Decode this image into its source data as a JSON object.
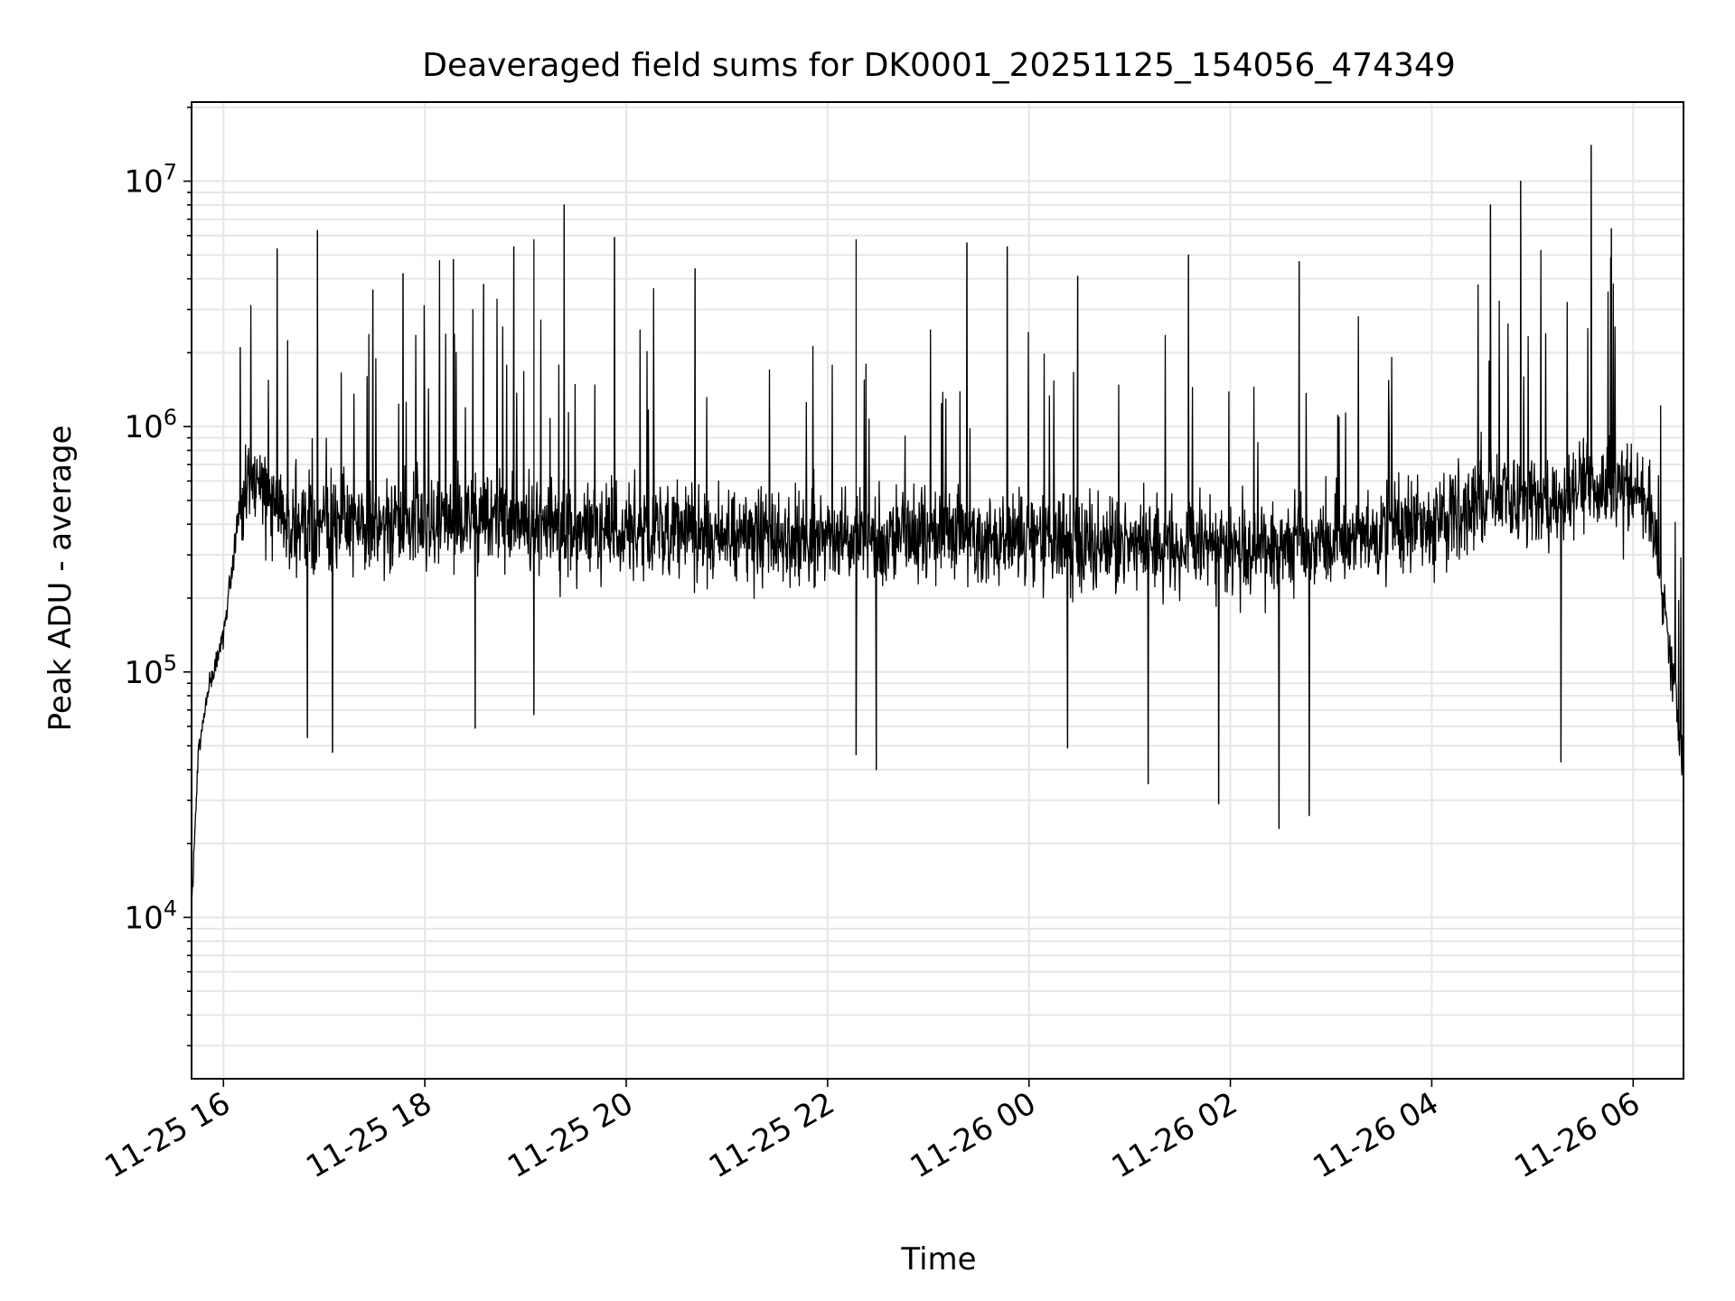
{
  "chart_data": {
    "type": "line",
    "title": "Deaveraged field sums for DK0001_20251125_154056_474349",
    "xlabel": "Time",
    "ylabel": "Peak ADU - average",
    "x_axis": {
      "type": "datetime",
      "range": [
        "2025-11-25 15:41",
        "2025-11-26 06:30"
      ],
      "tick_values": [
        "2025-11-25 16:00",
        "2025-11-25 18:00",
        "2025-11-25 20:00",
        "2025-11-25 22:00",
        "2025-11-26 00:00",
        "2025-11-26 02:00",
        "2025-11-26 04:00",
        "2025-11-26 06:00"
      ],
      "tick_labels": [
        "11-25 16",
        "11-25 18",
        "11-25 20",
        "11-25 22",
        "11-26 00",
        "11-26 02",
        "11-26 04",
        "11-26 06"
      ]
    },
    "y_axis": {
      "scale": "log",
      "range": [
        2200,
        21000000
      ],
      "tick_values": [
        10000,
        100000,
        1000000,
        10000000
      ],
      "tick_labels": [
        {
          "base": "10",
          "exp": "4"
        },
        {
          "base": "10",
          "exp": "5"
        },
        {
          "base": "10",
          "exp": "6"
        },
        {
          "base": "10",
          "exp": "7"
        }
      ]
    },
    "grid": true,
    "legend": "none",
    "series": [
      {
        "color": "#000000",
        "envelope": {
          "x": [
            "2025-11-25 15:41",
            "2025-11-25 15:45",
            "2025-11-25 15:50",
            "2025-11-25 16:00",
            "2025-11-25 16:05",
            "2025-11-25 16:10",
            "2025-11-25 16:20",
            "2025-11-25 16:30",
            "2025-11-25 16:45",
            "2025-11-25 17:00",
            "2025-11-25 18:00",
            "2025-11-25 19:00",
            "2025-11-25 20:00",
            "2025-11-25 21:00",
            "2025-11-25 22:00",
            "2025-11-25 23:00",
            "2025-11-26 00:00",
            "2025-11-26 01:00",
            "2025-11-26 02:00",
            "2025-11-26 03:00",
            "2025-11-26 04:00",
            "2025-11-26 04:30",
            "2025-11-26 05:00",
            "2025-11-26 05:30",
            "2025-11-26 06:00",
            "2025-11-26 06:10",
            "2025-11-26 06:20",
            "2025-11-26 06:30"
          ],
          "median": [
            11000,
            45000,
            80000,
            140000,
            250000,
            500000,
            600000,
            450000,
            380000,
            400000,
            410000,
            400000,
            380000,
            370000,
            350000,
            360000,
            340000,
            330000,
            320000,
            330000,
            420000,
            500000,
            520000,
            550000,
            600000,
            500000,
            150000,
            40000
          ]
        },
        "peaks": [
          {
            "x": "2025-11-25 16:10",
            "y": 2100000
          },
          {
            "x": "2025-11-25 16:32",
            "y": 5300000
          },
          {
            "x": "2025-11-25 16:56",
            "y": 6300000
          },
          {
            "x": "2025-11-25 17:29",
            "y": 3600000
          },
          {
            "x": "2025-11-25 17:47",
            "y": 4200000
          },
          {
            "x": "2025-11-25 18:17",
            "y": 4800000
          },
          {
            "x": "2025-11-25 18:35",
            "y": 3800000
          },
          {
            "x": "2025-11-25 18:53",
            "y": 5400000
          },
          {
            "x": "2025-11-25 19:05",
            "y": 5800000
          },
          {
            "x": "2025-11-25 19:23",
            "y": 8000000
          },
          {
            "x": "2025-11-25 19:53",
            "y": 5900000
          },
          {
            "x": "2025-11-25 20:41",
            "y": 4400000
          },
          {
            "x": "2025-11-25 22:17",
            "y": 5800000
          },
          {
            "x": "2025-11-25 23:23",
            "y": 5600000
          },
          {
            "x": "2025-11-25 23:47",
            "y": 5400000
          },
          {
            "x": "2025-11-26 00:29",
            "y": 4100000
          },
          {
            "x": "2025-11-26 01:35",
            "y": 5000000
          },
          {
            "x": "2025-11-26 02:41",
            "y": 4700000
          },
          {
            "x": "2025-11-26 04:35",
            "y": 8000000
          },
          {
            "x": "2025-11-26 04:53",
            "y": 10000000
          },
          {
            "x": "2025-11-26 05:35",
            "y": 14000000
          },
          {
            "x": "2025-11-26 05:47",
            "y": 6400000
          }
        ],
        "dips": [
          {
            "x": "2025-11-25 16:50",
            "y": 54000
          },
          {
            "x": "2025-11-25 17:05",
            "y": 47000
          },
          {
            "x": "2025-11-25 18:30",
            "y": 59000
          },
          {
            "x": "2025-11-25 19:05",
            "y": 67000
          },
          {
            "x": "2025-11-25 22:17",
            "y": 46000
          },
          {
            "x": "2025-11-25 22:29",
            "y": 40000
          },
          {
            "x": "2025-11-26 00:23",
            "y": 49000
          },
          {
            "x": "2025-11-26 01:11",
            "y": 35000
          },
          {
            "x": "2025-11-26 01:53",
            "y": 29000
          },
          {
            "x": "2025-11-26 02:29",
            "y": 23000
          },
          {
            "x": "2025-11-26 02:47",
            "y": 26000
          },
          {
            "x": "2025-11-26 05:17",
            "y": 43000
          },
          {
            "x": "2025-11-26 06:30",
            "y": 30000
          }
        ]
      }
    ]
  }
}
